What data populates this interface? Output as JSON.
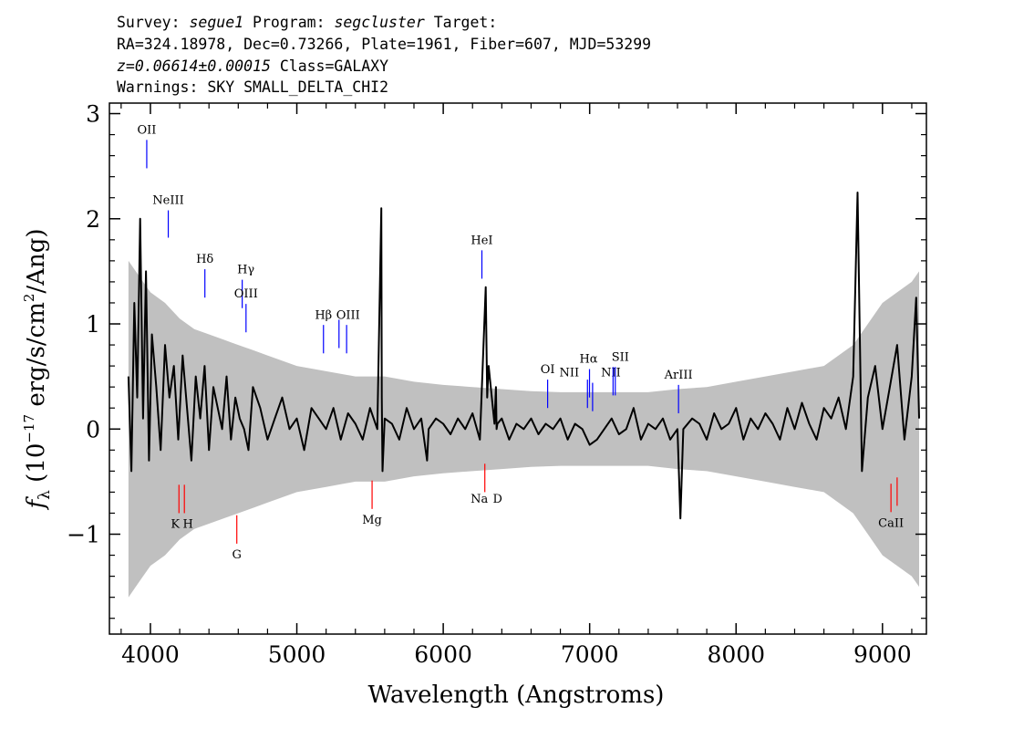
{
  "header": {
    "line1": {
      "p1": "Survey: ",
      "survey": "segue1",
      "p2": " Program: ",
      "program": "segcluster",
      "p3": " Target:"
    },
    "line2": "RA=324.18978, Dec=0.73266, Plate=1961, Fiber=607, MJD=53299",
    "line3": {
      "z": "z=0.06614±0.00015",
      "class": " Class=GALAXY"
    },
    "line4": "Warnings: SKY SMALL_DELTA_CHI2"
  },
  "colors": {
    "flux": "#000000",
    "noise": "#c0c0c0",
    "emission": "#0000ff",
    "absorption": "#ff0000"
  },
  "chart_data": {
    "type": "line",
    "xlabel": "Wavelength (Angstroms)",
    "ylabel": {
      "symbol": "f",
      "sub": "λ",
      "mid": " (10",
      "exp": "−17",
      "units": " erg/s/cm",
      "exp2": "2",
      "end": "/Ang)"
    },
    "xlim": [
      3720,
      9300
    ],
    "ylim": [
      -1.95,
      3.1
    ],
    "xticks": [
      {
        "value": 4000,
        "label": "4000"
      },
      {
        "value": 5000,
        "label": "5000"
      },
      {
        "value": 6000,
        "label": "6000"
      },
      {
        "value": 7000,
        "label": "7000"
      },
      {
        "value": 8000,
        "label": "8000"
      },
      {
        "value": 9000,
        "label": "9000"
      }
    ],
    "yticks": [
      {
        "value": -1,
        "label": "−1"
      },
      {
        "value": 0,
        "label": "0"
      },
      {
        "value": 1,
        "label": "1"
      },
      {
        "value": 2,
        "label": "2"
      },
      {
        "value": 3,
        "label": "3"
      }
    ],
    "series": [
      {
        "color": "#000000",
        "x": [
          3850,
          3870,
          3890,
          3910,
          3930,
          3950,
          3970,
          3990,
          4010,
          4040,
          4070,
          4100,
          4130,
          4160,
          4190,
          4220,
          4250,
          4280,
          4310,
          4340,
          4370,
          4400,
          4430,
          4460,
          4490,
          4520,
          4550,
          4580,
          4610,
          4640,
          4670,
          4700,
          4750,
          4800,
          4850,
          4900,
          4950,
          5000,
          5050,
          5100,
          5150,
          5200,
          5250,
          5300,
          5350,
          5400,
          5450,
          5500,
          5550,
          5577,
          5580,
          5585,
          5600,
          5650,
          5700,
          5750,
          5800,
          5850,
          5890,
          5900,
          5950,
          6000,
          6050,
          6100,
          6150,
          6200,
          6250,
          6290,
          6300,
          6310,
          6350,
          6360,
          6364,
          6370,
          6400,
          6450,
          6500,
          6550,
          6600,
          6650,
          6700,
          6750,
          6800,
          6850,
          6900,
          6950,
          7000,
          7050,
          7100,
          7150,
          7200,
          7250,
          7300,
          7350,
          7400,
          7450,
          7500,
          7550,
          7600,
          7620,
          7640,
          7700,
          7750,
          7800,
          7850,
          7900,
          7950,
          8000,
          8050,
          8100,
          8150,
          8200,
          8250,
          8300,
          8350,
          8400,
          8450,
          8500,
          8550,
          8600,
          8650,
          8700,
          8750,
          8800,
          8830,
          8860,
          8900,
          8950,
          9000,
          9050,
          9100,
          9150,
          9200,
          9230,
          9250
        ],
        "y": [
          0.5,
          -0.4,
          1.2,
          0.3,
          2.0,
          0.1,
          1.5,
          -0.3,
          0.9,
          0.4,
          -0.2,
          0.8,
          0.3,
          0.6,
          -0.1,
          0.7,
          0.2,
          -0.3,
          0.5,
          0.1,
          0.6,
          -0.2,
          0.4,
          0.2,
          0.0,
          0.5,
          -0.1,
          0.3,
          0.1,
          0.0,
          -0.2,
          0.4,
          0.2,
          -0.1,
          0.1,
          0.3,
          0.0,
          0.1,
          -0.2,
          0.2,
          0.1,
          0.0,
          0.2,
          -0.1,
          0.15,
          0.05,
          -0.1,
          0.2,
          0.0,
          2.1,
          0.3,
          -0.4,
          0.1,
          0.05,
          -0.1,
          0.2,
          0.0,
          0.1,
          -0.3,
          0.0,
          0.1,
          0.05,
          -0.05,
          0.1,
          0.0,
          0.15,
          -0.1,
          1.35,
          0.3,
          0.6,
          0.05,
          0.4,
          0.0,
          0.05,
          0.1,
          -0.1,
          0.05,
          0.0,
          0.1,
          -0.05,
          0.05,
          0.0,
          0.1,
          -0.1,
          0.05,
          0.0,
          -0.15,
          -0.1,
          0.0,
          0.1,
          -0.05,
          0.0,
          0.2,
          -0.1,
          0.05,
          0.0,
          0.1,
          -0.1,
          0.0,
          -0.85,
          0.0,
          0.1,
          0.05,
          -0.1,
          0.15,
          0.0,
          0.05,
          0.2,
          -0.1,
          0.1,
          0.0,
          0.15,
          0.05,
          -0.1,
          0.2,
          0.0,
          0.25,
          0.05,
          -0.1,
          0.2,
          0.1,
          0.3,
          0.0,
          0.5,
          2.25,
          -0.4,
          0.3,
          0.6,
          0.0,
          0.4,
          0.8,
          -0.1,
          0.5,
          1.25,
          0.1
        ]
      }
    ],
    "noise_band": {
      "x": [
        3850,
        3900,
        3950,
        4000,
        4100,
        4200,
        4300,
        4400,
        4500,
        4600,
        4700,
        4800,
        5000,
        5200,
        5400,
        5600,
        5800,
        6000,
        6200,
        6400,
        6600,
        6800,
        7000,
        7200,
        7400,
        7600,
        7800,
        8000,
        8200,
        8400,
        8600,
        8800,
        8900,
        9000,
        9100,
        9200,
        9250
      ],
      "y": [
        1.6,
        1.5,
        1.4,
        1.3,
        1.2,
        1.05,
        0.95,
        0.9,
        0.85,
        0.8,
        0.75,
        0.7,
        0.6,
        0.55,
        0.5,
        0.5,
        0.45,
        0.42,
        0.4,
        0.38,
        0.36,
        0.35,
        0.35,
        0.35,
        0.35,
        0.38,
        0.4,
        0.45,
        0.5,
        0.55,
        0.6,
        0.8,
        1.0,
        1.2,
        1.3,
        1.4,
        1.5
      ]
    },
    "emission_lines": [
      {
        "label": "OII",
        "x": 3975,
        "y1": 2.48,
        "y2": 2.75,
        "ly": 2.81
      },
      {
        "label": "NeIII",
        "x": 4122,
        "y1": 1.82,
        "y2": 2.08,
        "ly": 2.14
      },
      {
        "label": "Hδ",
        "x": 4372,
        "y1": 1.25,
        "y2": 1.52,
        "ly": 1.58
      },
      {
        "label": "Hγ",
        "x": 4627,
        "y1": 1.15,
        "y2": 1.42,
        "ly": 1.48
      },
      {
        "label": "OIII",
        "x": 4653,
        "y1": 0.92,
        "y2": 1.19,
        "ly": 1.25
      },
      {
        "label": "Hβ",
        "x": 5182,
        "y1": 0.72,
        "y2": 0.99,
        "ly": 1.05
      },
      {
        "label": "OIII",
        "x": 5288,
        "y1": 0.77,
        "y2": 1.04,
        "ly": 1.05
      },
      {
        "label": "",
        "x": 5340,
        "y1": 0.72,
        "y2": 0.99,
        "ly": 0
      },
      {
        "label": "HeI",
        "x": 6264,
        "y1": 1.43,
        "y2": 1.7,
        "ly": 1.76
      },
      {
        "label": "OI",
        "x": 6713,
        "y1": 0.2,
        "y2": 0.47,
        "ly": 0.53
      },
      {
        "label": "NII",
        "x": 6985,
        "y1": 0.2,
        "y2": 0.47,
        "ly": 0.5
      },
      {
        "label": "Hα",
        "x": 6999,
        "y1": 0.3,
        "y2": 0.57,
        "ly": 0.63
      },
      {
        "label": "NII",
        "x": 7020,
        "y1": 0.17,
        "y2": 0.44,
        "ly": 0.5
      },
      {
        "label": "SII",
        "x": 7160,
        "y1": 0.32,
        "y2": 0.59,
        "ly": 0.65
      },
      {
        "label": "",
        "x": 7175,
        "y1": 0.32,
        "y2": 0.59,
        "ly": 0
      },
      {
        "label": "ArIII",
        "x": 7607,
        "y1": 0.15,
        "y2": 0.42,
        "ly": 0.48
      }
    ],
    "absorption_lines": [
      {
        "label": "K",
        "x": 4195,
        "y1": -0.53,
        "y2": -0.8,
        "ly": -0.94
      },
      {
        "label": "H",
        "x": 4232,
        "y1": -0.53,
        "y2": -0.8,
        "ly": -0.94
      },
      {
        "label": "G",
        "x": 4590,
        "y1": -0.82,
        "y2": -1.09,
        "ly": -1.23
      },
      {
        "label": "Mg",
        "x": 5514,
        "y1": -0.49,
        "y2": -0.76,
        "ly": -0.9
      },
      {
        "label": "Na",
        "x": 6284,
        "y1": -0.33,
        "y2": -0.6,
        "ly": -0.7
      },
      {
        "label": "D",
        "x": 6284,
        "y1": -0.33,
        "y2": -0.33,
        "ly": -0.7
      },
      {
        "label": "CaII",
        "x": 9058,
        "y1": -0.52,
        "y2": -0.79,
        "ly": -0.93
      },
      {
        "label": "",
        "x": 9100,
        "y1": -0.46,
        "y2": -0.73,
        "ly": 0
      }
    ]
  }
}
